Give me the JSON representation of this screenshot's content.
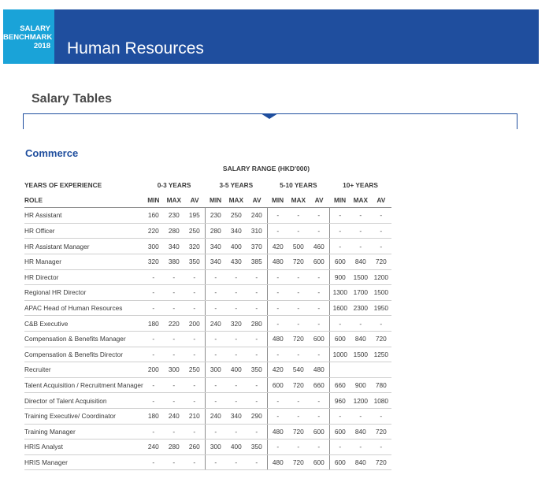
{
  "header": {
    "badge_line1": "SALARY",
    "badge_line2": "BENCHMARK",
    "badge_line3": "2018",
    "title": "Human Resources",
    "brand_color": "#1f4e9e",
    "badge_color": "#1aa3d8"
  },
  "section_title": "Salary Tables",
  "sub_title": "Commerce",
  "range_label": "SALARY RANGE (HKD'000)",
  "table": {
    "years_label": "YEARS OF EXPERIENCE",
    "groups": [
      "0-3 YEARS",
      "3-5 YEARS",
      "5-10 YEARS",
      "10+ YEARS"
    ],
    "role_label": "ROLE",
    "sub_headers": [
      "MIN",
      "MAX",
      "AV"
    ],
    "rows": [
      {
        "role": "HR Assistant",
        "values": [
          "160",
          "230",
          "195",
          "230",
          "250",
          "240",
          "-",
          "-",
          "-",
          "-",
          "-",
          "-"
        ]
      },
      {
        "role": "HR Officer",
        "values": [
          "220",
          "280",
          "250",
          "280",
          "340",
          "310",
          "-",
          "-",
          "-",
          "-",
          "-",
          "-"
        ]
      },
      {
        "role": "HR Assistant Manager",
        "values": [
          "300",
          "340",
          "320",
          "340",
          "400",
          "370",
          "420",
          "500",
          "460",
          "-",
          "-",
          "-"
        ]
      },
      {
        "role": "HR Manager",
        "values": [
          "320",
          "380",
          "350",
          "340",
          "430",
          "385",
          "480",
          "720",
          "600",
          "600",
          "840",
          "720"
        ]
      },
      {
        "role": "HR Director",
        "values": [
          "-",
          "-",
          "-",
          "-",
          "-",
          "-",
          "-",
          "-",
          "-",
          "900",
          "1500",
          "1200"
        ]
      },
      {
        "role": "Regional HR Director",
        "values": [
          "-",
          "-",
          "-",
          "-",
          "-",
          "-",
          "-",
          "-",
          "-",
          "1300",
          "1700",
          "1500"
        ]
      },
      {
        "role": "APAC Head of Human Resources",
        "values": [
          "-",
          "-",
          "-",
          "-",
          "-",
          "-",
          "-",
          "-",
          "-",
          "1600",
          "2300",
          "1950"
        ]
      },
      {
        "role": "C&B Executive",
        "values": [
          "180",
          "220",
          "200",
          "240",
          "320",
          "280",
          "-",
          "-",
          "-",
          "-",
          "-",
          "-"
        ]
      },
      {
        "role": "Compensation & Benefits Manager",
        "values": [
          "-",
          "-",
          "-",
          "-",
          "-",
          "-",
          "480",
          "720",
          "600",
          "600",
          "840",
          "720"
        ]
      },
      {
        "role": "Compensation & Benefits Director",
        "values": [
          "-",
          "-",
          "-",
          "-",
          "-",
          "-",
          "-",
          "-",
          "-",
          "1000",
          "1500",
          "1250"
        ]
      },
      {
        "role": "Recruiter",
        "values": [
          "200",
          "300",
          "250",
          "300",
          "400",
          "350",
          "420",
          "540",
          "480",
          "",
          "",
          ""
        ]
      },
      {
        "role": "Talent Acquisition / Recruitment Manager",
        "values": [
          "-",
          "-",
          "-",
          "-",
          "-",
          "-",
          "600",
          "720",
          "660",
          "660",
          "900",
          "780"
        ]
      },
      {
        "role": "Director of Talent Acquisition",
        "values": [
          "-",
          "-",
          "-",
          "-",
          "-",
          "-",
          "-",
          "-",
          "-",
          "960",
          "1200",
          "1080"
        ]
      },
      {
        "role": "Training Executive/ Coordinator",
        "values": [
          "180",
          "240",
          "210",
          "240",
          "340",
          "290",
          "-",
          "-",
          "-",
          "-",
          "-",
          "-"
        ]
      },
      {
        "role": "Training Manager",
        "values": [
          "-",
          "-",
          "-",
          "-",
          "-",
          "-",
          "480",
          "720",
          "600",
          "600",
          "840",
          "720"
        ]
      },
      {
        "role": "HRIS Analyst",
        "values": [
          "240",
          "280",
          "260",
          "300",
          "400",
          "350",
          "-",
          "-",
          "-",
          "-",
          "-",
          "-"
        ]
      },
      {
        "role": "HRIS Manager",
        "values": [
          "-",
          "-",
          "-",
          "-",
          "-",
          "-",
          "480",
          "720",
          "600",
          "600",
          "840",
          "720"
        ]
      }
    ]
  }
}
